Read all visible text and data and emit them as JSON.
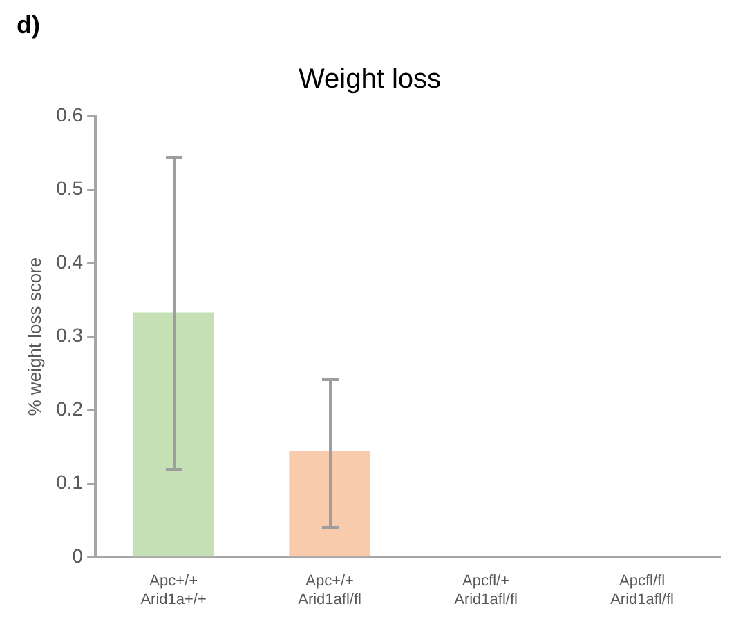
{
  "chart_data": {
    "type": "bar",
    "title": "Weight loss",
    "ylabel": "% weight loss score",
    "annotations": [
      "d)"
    ],
    "categories": [
      "Apc+/+\nArid1a+/+",
      "Apc+/+\nArid1afl/fl",
      "Apcfl/+\nArid1afl/fl",
      "Apcfl/fl\nArid1afl/fl"
    ],
    "values": [
      0.333,
      0.144,
      0,
      0
    ],
    "colors": [
      "#c5e0b4",
      "#f8cbad",
      "#bdd7ee",
      "#d9d9d9"
    ],
    "errors": [
      [
        0.12,
        0.543
      ],
      [
        0.041,
        0.242
      ],
      null,
      null
    ],
    "ylim": [
      0,
      0.6
    ],
    "yticks": [
      0,
      0.1,
      0.2,
      0.3,
      0.4,
      0.5,
      0.6
    ],
    "grid": false,
    "legend": false
  }
}
